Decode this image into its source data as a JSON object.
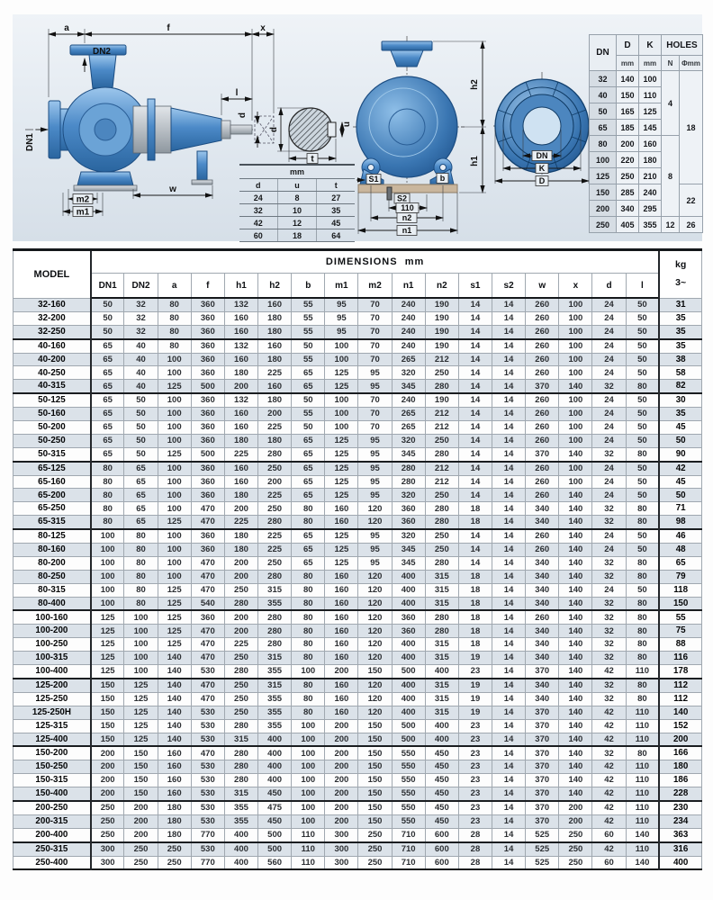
{
  "palette": {
    "accent_blue": "#3a7dc0",
    "panel_bg": "#e3eaf0",
    "zebra_row": "#dbe2e9",
    "base_tan": "#c9b69d"
  },
  "drawings": {
    "side_view": {
      "labels": {
        "a": "a",
        "f": "f",
        "x": "x",
        "dn2": "DN2",
        "dn1": "DN1",
        "l": "l",
        "d": "d",
        "m2": "m2",
        "m1": "m1",
        "w": "w"
      }
    },
    "shaft_section": {
      "labels": {
        "d": "d",
        "u": "u",
        "t": "t"
      }
    },
    "front_view": {
      "labels": {
        "h2": "h2",
        "h1": "h1",
        "s1": "S1",
        "s2": "S2",
        "dim110": "110",
        "n2": "n2",
        "n1": "n1",
        "b": "b"
      }
    },
    "flange_view": {
      "labels": {
        "dn": "DN",
        "k": "K",
        "d": "D"
      }
    }
  },
  "shaft_table": {
    "unit_header": "mm",
    "columns": [
      "d",
      "u",
      "t"
    ],
    "rows": [
      [
        24,
        8,
        27
      ],
      [
        32,
        10,
        35
      ],
      [
        42,
        12,
        45
      ],
      [
        60,
        18,
        64
      ]
    ]
  },
  "flange_table": {
    "col_dn": "DN",
    "col_d": "D",
    "col_k": "K",
    "col_holes": "HOLES",
    "sub_mm": "mm",
    "sub_n": "N",
    "sub_phi": "Φmm",
    "rows": [
      [
        32,
        140,
        100
      ],
      [
        40,
        150,
        110
      ],
      [
        50,
        165,
        125
      ],
      [
        65,
        185,
        145
      ],
      [
        80,
        200,
        160
      ],
      [
        100,
        220,
        180
      ],
      [
        125,
        250,
        210
      ],
      [
        150,
        285,
        240
      ],
      [
        200,
        340,
        295
      ],
      [
        250,
        405,
        355
      ]
    ],
    "n_groups": [
      {
        "value": 4,
        "span": 4
      },
      {
        "value": 8,
        "span": 5
      },
      {
        "value": 12,
        "span": 1
      }
    ],
    "phi_groups": [
      {
        "value": 18,
        "span": 7
      },
      {
        "value": 22,
        "span": 2
      },
      {
        "value": 26,
        "span": 1
      }
    ]
  },
  "main_table": {
    "model_header": "MODEL",
    "title": "DIMENSIONS",
    "title_unit": "mm",
    "kg_header": "kg",
    "kg_sub": "3~",
    "columns": [
      "DN1",
      "DN2",
      "a",
      "f",
      "h1",
      "h2",
      "b",
      "m1",
      "m2",
      "n1",
      "n2",
      "s1",
      "s2",
      "w",
      "x",
      "d",
      "l"
    ],
    "rows": [
      {
        "model": "32-160",
        "values": [
          50,
          32,
          80,
          360,
          132,
          160,
          55,
          95,
          70,
          240,
          190,
          14,
          14,
          260,
          100,
          24,
          50
        ],
        "kg": 31
      },
      {
        "model": "32-200",
        "values": [
          50,
          32,
          80,
          360,
          160,
          180,
          55,
          95,
          70,
          240,
          190,
          14,
          14,
          260,
          100,
          24,
          50
        ],
        "kg": 35
      },
      {
        "model": "32-250",
        "values": [
          50,
          32,
          80,
          360,
          160,
          180,
          55,
          95,
          70,
          240,
          190,
          14,
          14,
          260,
          100,
          24,
          50
        ],
        "kg": 35
      },
      {
        "model": "40-160",
        "values": [
          65,
          40,
          80,
          360,
          132,
          160,
          50,
          100,
          70,
          240,
          190,
          14,
          14,
          260,
          100,
          24,
          50
        ],
        "kg": 35
      },
      {
        "model": "40-200",
        "values": [
          65,
          40,
          100,
          360,
          160,
          180,
          55,
          100,
          70,
          265,
          212,
          14,
          14,
          260,
          100,
          24,
          50
        ],
        "kg": 38
      },
      {
        "model": "40-250",
        "values": [
          65,
          40,
          100,
          360,
          180,
          225,
          65,
          125,
          95,
          320,
          250,
          14,
          14,
          260,
          100,
          24,
          50
        ],
        "kg": 58
      },
      {
        "model": "40-315",
        "values": [
          65,
          40,
          125,
          500,
          200,
          160,
          65,
          125,
          95,
          345,
          280,
          14,
          14,
          370,
          140,
          32,
          80
        ],
        "kg": 82
      },
      {
        "model": "50-125",
        "values": [
          65,
          50,
          100,
          360,
          132,
          180,
          50,
          100,
          70,
          240,
          190,
          14,
          14,
          260,
          100,
          24,
          50
        ],
        "kg": 30
      },
      {
        "model": "50-160",
        "values": [
          65,
          50,
          100,
          360,
          160,
          200,
          55,
          100,
          70,
          265,
          212,
          14,
          14,
          260,
          100,
          24,
          50
        ],
        "kg": 35
      },
      {
        "model": "50-200",
        "values": [
          65,
          50,
          100,
          360,
          160,
          225,
          50,
          100,
          70,
          265,
          212,
          14,
          14,
          260,
          100,
          24,
          50
        ],
        "kg": 45
      },
      {
        "model": "50-250",
        "values": [
          65,
          50,
          100,
          360,
          180,
          180,
          65,
          125,
          95,
          320,
          250,
          14,
          14,
          260,
          100,
          24,
          50
        ],
        "kg": 50
      },
      {
        "model": "50-315",
        "values": [
          65,
          50,
          125,
          500,
          225,
          280,
          65,
          125,
          95,
          345,
          280,
          14,
          14,
          370,
          140,
          32,
          80
        ],
        "kg": 90
      },
      {
        "model": "65-125",
        "values": [
          80,
          65,
          100,
          360,
          160,
          250,
          65,
          125,
          95,
          280,
          212,
          14,
          14,
          260,
          100,
          24,
          50
        ],
        "kg": 42
      },
      {
        "model": "65-160",
        "values": [
          80,
          65,
          100,
          360,
          160,
          200,
          65,
          125,
          95,
          280,
          212,
          14,
          14,
          260,
          100,
          24,
          50
        ],
        "kg": 45
      },
      {
        "model": "65-200",
        "values": [
          80,
          65,
          100,
          360,
          180,
          225,
          65,
          125,
          95,
          320,
          250,
          14,
          14,
          260,
          140,
          24,
          50
        ],
        "kg": 50
      },
      {
        "model": "65-250",
        "values": [
          80,
          65,
          100,
          470,
          200,
          250,
          80,
          160,
          120,
          360,
          280,
          18,
          14,
          340,
          140,
          32,
          80
        ],
        "kg": 71
      },
      {
        "model": "65-315",
        "values": [
          80,
          65,
          125,
          470,
          225,
          280,
          80,
          160,
          120,
          360,
          280,
          18,
          14,
          340,
          140,
          32,
          80
        ],
        "kg": 98
      },
      {
        "model": "80-125",
        "values": [
          100,
          80,
          100,
          360,
          180,
          225,
          65,
          125,
          95,
          320,
          250,
          14,
          14,
          260,
          140,
          24,
          50
        ],
        "kg": 46
      },
      {
        "model": "80-160",
        "values": [
          100,
          80,
          100,
          360,
          180,
          225,
          65,
          125,
          95,
          345,
          250,
          14,
          14,
          260,
          140,
          24,
          50
        ],
        "kg": 48
      },
      {
        "model": "80-200",
        "values": [
          100,
          80,
          100,
          470,
          200,
          250,
          65,
          125,
          95,
          345,
          280,
          14,
          14,
          340,
          140,
          32,
          80
        ],
        "kg": 65
      },
      {
        "model": "80-250",
        "values": [
          100,
          80,
          100,
          470,
          200,
          280,
          80,
          160,
          120,
          400,
          315,
          18,
          14,
          340,
          140,
          32,
          80
        ],
        "kg": 79
      },
      {
        "model": "80-315",
        "values": [
          100,
          80,
          125,
          470,
          250,
          315,
          80,
          160,
          120,
          400,
          315,
          18,
          14,
          340,
          140,
          24,
          50
        ],
        "kg": 118
      },
      {
        "model": "80-400",
        "values": [
          100,
          80,
          125,
          540,
          280,
          355,
          80,
          160,
          120,
          400,
          315,
          18,
          14,
          340,
          140,
          32,
          80
        ],
        "kg": 150
      },
      {
        "model": "100-160",
        "values": [
          125,
          100,
          125,
          360,
          200,
          280,
          80,
          160,
          120,
          360,
          280,
          18,
          14,
          260,
          140,
          32,
          80
        ],
        "kg": 55
      },
      {
        "model": "100-200",
        "values": [
          125,
          100,
          125,
          470,
          200,
          280,
          80,
          160,
          120,
          360,
          280,
          18,
          14,
          340,
          140,
          32,
          80
        ],
        "kg": 75
      },
      {
        "model": "100-250",
        "values": [
          125,
          100,
          125,
          470,
          225,
          280,
          80,
          160,
          120,
          400,
          315,
          18,
          14,
          340,
          140,
          32,
          80
        ],
        "kg": 88
      },
      {
        "model": "100-315",
        "values": [
          125,
          100,
          140,
          470,
          250,
          315,
          80,
          160,
          120,
          400,
          315,
          19,
          14,
          340,
          140,
          32,
          80
        ],
        "kg": 116
      },
      {
        "model": "100-400",
        "values": [
          125,
          100,
          140,
          530,
          280,
          355,
          100,
          200,
          150,
          500,
          400,
          23,
          14,
          370,
          140,
          42,
          110
        ],
        "kg": 178
      },
      {
        "model": "125-200",
        "values": [
          150,
          125,
          140,
          470,
          250,
          315,
          80,
          160,
          120,
          400,
          315,
          19,
          14,
          340,
          140,
          32,
          80
        ],
        "kg": 112
      },
      {
        "model": "125-250",
        "values": [
          150,
          125,
          140,
          470,
          250,
          355,
          80,
          160,
          120,
          400,
          315,
          19,
          14,
          340,
          140,
          32,
          80
        ],
        "kg": 112
      },
      {
        "model": "125-250H",
        "values": [
          150,
          125,
          140,
          530,
          250,
          355,
          80,
          160,
          120,
          400,
          315,
          19,
          14,
          370,
          140,
          42,
          110
        ],
        "kg": 140
      },
      {
        "model": "125-315",
        "values": [
          150,
          125,
          140,
          530,
          280,
          355,
          100,
          200,
          150,
          500,
          400,
          23,
          14,
          370,
          140,
          42,
          110
        ],
        "kg": 152
      },
      {
        "model": "125-400",
        "values": [
          150,
          125,
          140,
          530,
          315,
          400,
          100,
          200,
          150,
          500,
          400,
          23,
          14,
          370,
          140,
          42,
          110
        ],
        "kg": 200
      },
      {
        "model": "150-200",
        "values": [
          200,
          150,
          160,
          470,
          280,
          400,
          100,
          200,
          150,
          550,
          450,
          23,
          14,
          370,
          140,
          32,
          80
        ],
        "kg": 166
      },
      {
        "model": "150-250",
        "values": [
          200,
          150,
          160,
          530,
          280,
          400,
          100,
          200,
          150,
          550,
          450,
          23,
          14,
          370,
          140,
          42,
          110
        ],
        "kg": 180
      },
      {
        "model": "150-315",
        "values": [
          200,
          150,
          160,
          530,
          280,
          400,
          100,
          200,
          150,
          550,
          450,
          23,
          14,
          370,
          140,
          42,
          110
        ],
        "kg": 186
      },
      {
        "model": "150-400",
        "values": [
          200,
          150,
          160,
          530,
          315,
          450,
          100,
          200,
          150,
          550,
          450,
          23,
          14,
          370,
          140,
          42,
          110
        ],
        "kg": 228
      },
      {
        "model": "200-250",
        "values": [
          250,
          200,
          180,
          530,
          355,
          475,
          100,
          200,
          150,
          550,
          450,
          23,
          14,
          370,
          200,
          42,
          110
        ],
        "kg": 230
      },
      {
        "model": "200-315",
        "values": [
          250,
          200,
          180,
          530,
          355,
          450,
          100,
          200,
          150,
          550,
          450,
          23,
          14,
          370,
          200,
          42,
          110
        ],
        "kg": 234
      },
      {
        "model": "200-400",
        "values": [
          250,
          200,
          180,
          770,
          400,
          500,
          110,
          300,
          250,
          710,
          600,
          28,
          14,
          525,
          250,
          60,
          140
        ],
        "kg": 363
      },
      {
        "model": "250-315",
        "values": [
          300,
          250,
          250,
          530,
          400,
          500,
          110,
          300,
          250,
          710,
          600,
          28,
          14,
          525,
          250,
          42,
          110
        ],
        "kg": 316
      },
      {
        "model": "250-400",
        "values": [
          300,
          250,
          250,
          770,
          400,
          560,
          110,
          300,
          250,
          710,
          600,
          28,
          14,
          525,
          250,
          60,
          140
        ],
        "kg": 400
      }
    ]
  }
}
